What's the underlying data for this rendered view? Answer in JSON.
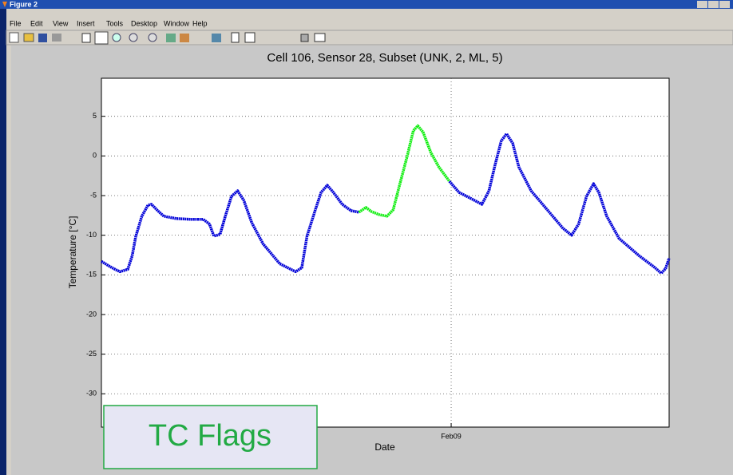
{
  "window": {
    "title": "Figure 2",
    "menu": [
      "File",
      "Edit",
      "View",
      "Insert",
      "Tools",
      "Desktop",
      "Window",
      "Help"
    ]
  },
  "annotation": "TC Flags",
  "chart_data": {
    "type": "line",
    "title": "Cell 106, Sensor 28, Subset (UNK, 2, ML, 5)",
    "x_label": "Date",
    "y_label": "Temperature [°C]",
    "x": [
      -3.98,
      -3.86,
      -3.77,
      -3.68,
      -3.63,
      -3.59,
      -3.52,
      -3.45,
      -3.41,
      -3.34,
      -3.27,
      -3.13,
      -2.95,
      -2.82,
      -2.75,
      -2.7,
      -2.63,
      -2.57,
      -2.5,
      -2.43,
      -2.36,
      -2.27,
      -2.14,
      -1.95,
      -1.77,
      -1.7,
      -1.64,
      -1.54,
      -1.48,
      -1.41,
      -1.34,
      -1.24,
      -1.14,
      -1.05,
      -0.97,
      -0.91,
      -0.82,
      -0.73,
      -0.66,
      -0.59,
      -0.5,
      -0.43,
      -0.38,
      -0.32,
      -0.23,
      -0.14,
      -0.02,
      0.09,
      0.23,
      0.35,
      0.43,
      0.5,
      0.57,
      0.63,
      0.7,
      0.77,
      0.91,
      1.14,
      1.27,
      1.37,
      1.45,
      1.54,
      1.62,
      1.68,
      1.77,
      1.91,
      2.14,
      2.32,
      2.39,
      2.44,
      2.48
    ],
    "series": [
      {
        "color": "#0000d8",
        "values": [
          -13.3,
          -14.1,
          -14.6,
          -14.3,
          -12.6,
          -10.2,
          -7.6,
          -6.2,
          -6.1,
          -6.9,
          -7.6,
          -7.9,
          -8.0,
          -8.0,
          -8.6,
          -10.1,
          -9.9,
          -7.6,
          -5.1,
          -4.4,
          -5.6,
          -8.4,
          -11.1,
          -13.6,
          -14.6,
          -14.1,
          -10.1,
          -6.6,
          -4.6,
          -3.7,
          -4.6,
          -6.1,
          -6.9,
          -7.1,
          null,
          null,
          null,
          null,
          null,
          null,
          null,
          null,
          null,
          null,
          null,
          null,
          -3.2,
          -4.6,
          -5.4,
          -6.1,
          -4.4,
          -1.1,
          1.9,
          2.8,
          1.6,
          -1.4,
          -4.4,
          -7.4,
          -9.1,
          -10.0,
          -8.6,
          -5.1,
          -3.5,
          -4.6,
          -7.6,
          -10.4,
          -12.6,
          -14.1,
          -14.8,
          -14.2,
          -12.9
        ]
      },
      {
        "color": "#11ee11",
        "values": [
          null,
          null,
          null,
          null,
          null,
          null,
          null,
          null,
          null,
          null,
          null,
          null,
          null,
          null,
          null,
          null,
          null,
          null,
          null,
          null,
          null,
          null,
          null,
          null,
          null,
          null,
          null,
          null,
          null,
          null,
          null,
          null,
          null,
          -7.1,
          -6.5,
          -7.0,
          -7.4,
          -7.6,
          -6.8,
          -3.8,
          0.0,
          3.2,
          3.8,
          3.0,
          0.4,
          -1.4,
          -3.2,
          null,
          null,
          null,
          null,
          null,
          null,
          null,
          null,
          null,
          null,
          null,
          null,
          null,
          null,
          null,
          null,
          null,
          null,
          null,
          null,
          null,
          null,
          null,
          null
        ]
      }
    ],
    "xlim": [
      -3.98,
      2.48
    ],
    "xticks": [
      {
        "value": 0,
        "label": "Feb09"
      }
    ],
    "ylim": [
      -34.2,
      9.8
    ],
    "yticks": [
      5,
      0,
      -5,
      -10,
      -15,
      -20,
      -25,
      -30
    ],
    "grid": true
  }
}
